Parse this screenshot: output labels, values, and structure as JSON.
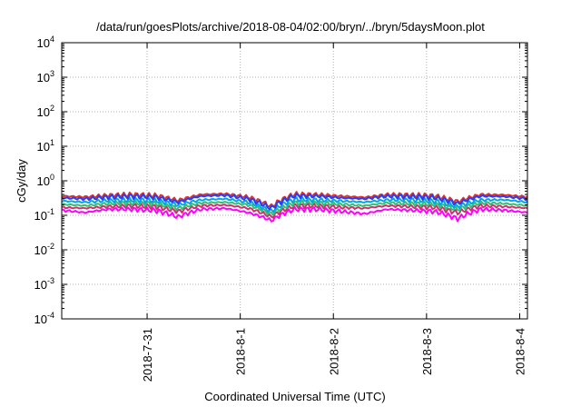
{
  "chart_data": {
    "type": "line",
    "title": "/data/run/goesPlots/archive/2018-08-04/02:00/bryn/../bryn/5daysMoon.plot",
    "xlabel": "Coordinated Universal Time (UTC)",
    "ylabel": "cGy/day",
    "y_scale": "log",
    "ylim": [
      0.0001,
      10000
    ],
    "y_ticks": [
      {
        "value": 0.0001,
        "base": "10",
        "exp": "-4"
      },
      {
        "value": 0.001,
        "base": "10",
        "exp": "-3"
      },
      {
        "value": 0.01,
        "base": "10",
        "exp": "-2"
      },
      {
        "value": 0.1,
        "base": "10",
        "exp": "-1"
      },
      {
        "value": 1,
        "base": "10",
        "exp": "0"
      },
      {
        "value": 10,
        "base": "10",
        "exp": "1"
      },
      {
        "value": 100,
        "base": "10",
        "exp": "2"
      },
      {
        "value": 1000,
        "base": "10",
        "exp": "3"
      },
      {
        "value": 10000,
        "base": "10",
        "exp": "4"
      }
    ],
    "xlim": [
      "2018-07-30T02:00",
      "2018-08-04T02:00"
    ],
    "x_ticks": [
      "2018-7-31",
      "2018-8-1",
      "2018-8-2",
      "2018-8-3",
      "2018-8-4"
    ],
    "grid": true,
    "x": [
      "2018-07-30T02:00",
      "2018-07-30T08:00",
      "2018-07-30T14:00",
      "2018-07-30T20:00",
      "2018-07-31T02:00",
      "2018-07-31T08:00",
      "2018-07-31T14:00",
      "2018-07-31T20:00",
      "2018-08-01T02:00",
      "2018-08-01T08:00",
      "2018-08-01T14:00",
      "2018-08-01T20:00",
      "2018-08-02T02:00",
      "2018-08-02T08:00",
      "2018-08-02T14:00",
      "2018-08-02T20:00",
      "2018-08-03T02:00",
      "2018-08-03T08:00",
      "2018-08-03T14:00",
      "2018-08-03T20:00",
      "2018-08-04T02:00"
    ],
    "series": [
      {
        "color": "#2040ff",
        "values": [
          0.32,
          0.3,
          0.34,
          0.36,
          0.34,
          0.24,
          0.36,
          0.38,
          0.3,
          0.16,
          0.37,
          0.36,
          0.32,
          0.3,
          0.36,
          0.35,
          0.33,
          0.22,
          0.36,
          0.35,
          0.3
        ]
      },
      {
        "color": "#e03030",
        "values": [
          0.36,
          0.34,
          0.38,
          0.4,
          0.38,
          0.27,
          0.4,
          0.42,
          0.34,
          0.18,
          0.41,
          0.4,
          0.36,
          0.33,
          0.4,
          0.39,
          0.37,
          0.25,
          0.4,
          0.39,
          0.34
        ]
      },
      {
        "color": "#00a8e0",
        "values": [
          0.26,
          0.24,
          0.27,
          0.28,
          0.27,
          0.2,
          0.28,
          0.3,
          0.24,
          0.13,
          0.29,
          0.28,
          0.26,
          0.24,
          0.28,
          0.28,
          0.26,
          0.18,
          0.28,
          0.28,
          0.24
        ]
      },
      {
        "color": "#30c070",
        "values": [
          0.21,
          0.19,
          0.22,
          0.23,
          0.22,
          0.16,
          0.23,
          0.24,
          0.2,
          0.11,
          0.23,
          0.23,
          0.21,
          0.19,
          0.23,
          0.22,
          0.21,
          0.15,
          0.23,
          0.22,
          0.19
        ]
      },
      {
        "color": "#d03070",
        "values": [
          0.17,
          0.16,
          0.18,
          0.19,
          0.18,
          0.13,
          0.19,
          0.2,
          0.16,
          0.09,
          0.19,
          0.19,
          0.17,
          0.16,
          0.19,
          0.18,
          0.17,
          0.12,
          0.19,
          0.18,
          0.16
        ]
      },
      {
        "color": "#ff00ff",
        "values": [
          0.14,
          0.12,
          0.15,
          0.15,
          0.14,
          0.09,
          0.15,
          0.16,
          0.12,
          0.07,
          0.15,
          0.15,
          0.13,
          0.11,
          0.15,
          0.14,
          0.13,
          0.08,
          0.15,
          0.14,
          0.12
        ]
      }
    ]
  }
}
